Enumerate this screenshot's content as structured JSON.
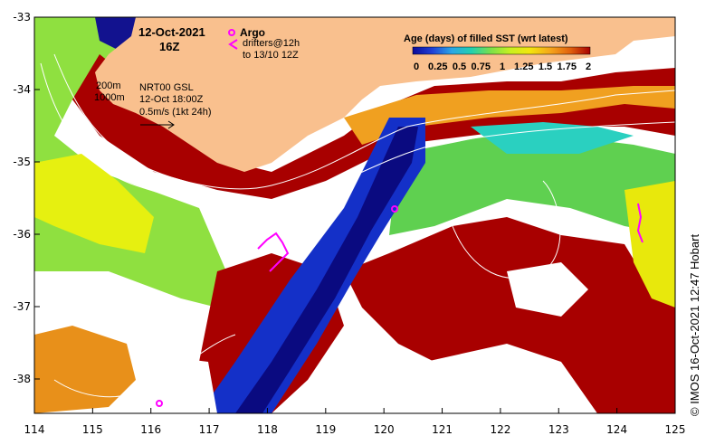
{
  "header": {
    "date": "12-Oct-2021",
    "time": "16Z"
  },
  "legend": {
    "argo_label": "Argo",
    "drifter_line1": "drifters@12h",
    "drifter_line2": "to 13/10 12Z",
    "colorbar_title": "Age (days) of filled SST (wrt latest)",
    "colorbar_ticks": [
      "0",
      "0.25",
      "0.5",
      "0.75",
      "1",
      "1.25",
      "1.5",
      "1.75",
      "2"
    ],
    "colorbar_colors": [
      "#0a0a9a",
      "#1f3fd6",
      "#2aa6e6",
      "#22d0b0",
      "#7be04a",
      "#c8f020",
      "#f2e60c",
      "#f5a31a",
      "#e0600e",
      "#a80000"
    ]
  },
  "annotations": {
    "contour_200": "200m",
    "contour_1000": "1000m",
    "product": "NRT00 GSL",
    "product_time": "12-Oct 18:00Z",
    "velocity_scale": "0.5m/s (1kt 24h)"
  },
  "credit": "© IMOS 16-Oct-2021 12:47 Hobart",
  "axes": {
    "x_ticks": [
      "114",
      "115",
      "116",
      "117",
      "118",
      "119",
      "120",
      "121",
      "122",
      "123",
      "124",
      "125"
    ],
    "y_ticks": [
      "-33",
      "-34",
      "-35",
      "-36",
      "-37",
      "-38"
    ]
  },
  "colors": {
    "land": "#f9c08e",
    "frame": "#000000",
    "argo": "#ff00ff",
    "contour": "#ffffff"
  }
}
